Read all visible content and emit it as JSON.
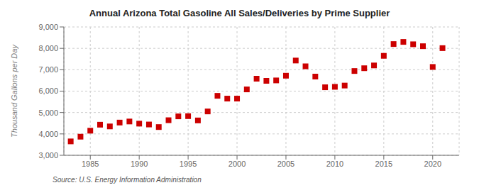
{
  "chart_data": {
    "type": "scatter",
    "title": "Annual Arizona Total Gasoline All Sales/Deliveries by Prime Supplier",
    "ylabel": "Thousand Gallons per Day",
    "annotations": [
      "Source: U.S. Energy Information Administration"
    ],
    "x": [
      1983,
      1984,
      1985,
      1986,
      1987,
      1988,
      1989,
      1990,
      1991,
      1992,
      1993,
      1994,
      1995,
      1996,
      1997,
      1998,
      1999,
      2000,
      2001,
      2002,
      2003,
      2004,
      2005,
      2006,
      2007,
      2008,
      2009,
      2010,
      2011,
      2012,
      2013,
      2014,
      2015,
      2016,
      2017,
      2018,
      2019,
      2020,
      2021
    ],
    "values": [
      3650,
      3870,
      4150,
      4430,
      4350,
      4530,
      4580,
      4480,
      4440,
      4320,
      4640,
      4820,
      4830,
      4630,
      5050,
      5780,
      5650,
      5650,
      6080,
      6580,
      6480,
      6500,
      6720,
      7430,
      7160,
      6680,
      6180,
      6200,
      6260,
      6940,
      7070,
      7200,
      7650,
      8200,
      8300,
      8190,
      8100,
      7130,
      8010
    ],
    "color": "#cc0000",
    "marker": "square",
    "grid": true,
    "xlim": [
      1982.3,
      2022.7
    ],
    "xticks": [
      1985,
      1990,
      1995,
      2000,
      2005,
      2010,
      2015,
      2020
    ],
    "ylim": [
      3000,
      9000
    ],
    "yticks": [
      {
        "value": 3000,
        "label": "3,000"
      },
      {
        "value": 4000,
        "label": "4,000"
      },
      {
        "value": 5000,
        "label": "5,000"
      },
      {
        "value": 6000,
        "label": "6,000"
      },
      {
        "value": 7000,
        "label": "7,000"
      },
      {
        "value": 8000,
        "label": "8,000"
      },
      {
        "value": 9000,
        "label": "9,000"
      }
    ]
  }
}
